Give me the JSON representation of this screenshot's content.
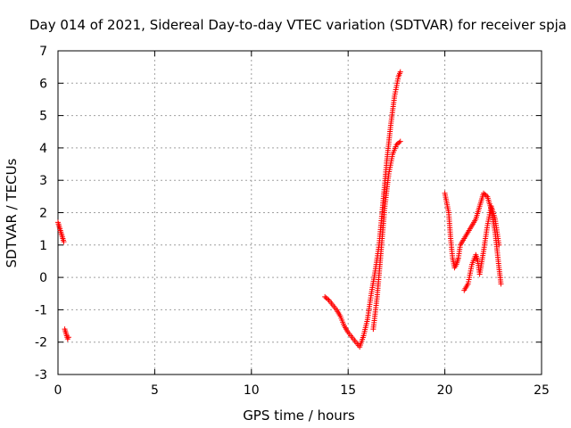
{
  "chart_data": {
    "type": "scatter",
    "title": "Day 014 of 2021, Sidereal Day-to-day VTEC variation (SDTVAR) for receiver spja",
    "xlabel": "GPS time / hours",
    "ylabel": "SDTVAR / TECUs",
    "xlim": [
      0,
      25
    ],
    "ylim": [
      -3,
      7
    ],
    "xticks": [
      "0",
      "5",
      "10",
      "15",
      "20",
      "25"
    ],
    "yticks": [
      "-3",
      "-2",
      "-1",
      "0",
      "1",
      "2",
      "3",
      "4",
      "5",
      "6",
      "7"
    ],
    "grid": true,
    "marker": "+",
    "color": "#ff0000",
    "series": [
      {
        "segments": [
          [
            [
              0.0,
              1.7
            ],
            [
              0.05,
              1.6
            ],
            [
              0.1,
              1.5
            ],
            [
              0.15,
              1.4
            ],
            [
              0.2,
              1.3
            ],
            [
              0.25,
              1.2
            ],
            [
              0.3,
              1.1
            ]
          ],
          [
            [
              0.35,
              -1.6
            ],
            [
              0.4,
              -1.7
            ],
            [
              0.45,
              -1.8
            ],
            [
              0.5,
              -1.9
            ],
            [
              0.55,
              -1.85
            ]
          ],
          [
            [
              13.8,
              -0.6
            ],
            [
              14.0,
              -0.7
            ],
            [
              14.2,
              -0.85
            ],
            [
              14.4,
              -1.0
            ],
            [
              14.6,
              -1.2
            ],
            [
              14.8,
              -1.5
            ],
            [
              15.0,
              -1.7
            ],
            [
              15.2,
              -1.85
            ],
            [
              15.4,
              -2.0
            ],
            [
              15.6,
              -2.15
            ],
            [
              15.8,
              -1.8
            ],
            [
              16.0,
              -1.3
            ],
            [
              16.2,
              -0.5
            ],
            [
              16.4,
              0.2
            ],
            [
              16.6,
              1.0
            ],
            [
              16.8,
              2.3
            ],
            [
              17.0,
              3.6
            ],
            [
              17.2,
              4.7
            ],
            [
              17.4,
              5.6
            ],
            [
              17.6,
              6.2
            ],
            [
              17.7,
              6.35
            ]
          ],
          [
            [
              16.3,
              -1.6
            ],
            [
              16.5,
              -0.6
            ],
            [
              16.7,
              0.8
            ],
            [
              16.9,
              2.2
            ],
            [
              17.1,
              3.2
            ],
            [
              17.3,
              3.8
            ],
            [
              17.5,
              4.1
            ],
            [
              17.7,
              4.2
            ]
          ],
          [
            [
              20.0,
              2.6
            ],
            [
              20.1,
              2.3
            ],
            [
              20.2,
              2.0
            ],
            [
              20.3,
              1.2
            ],
            [
              20.4,
              0.6
            ],
            [
              20.5,
              0.3
            ],
            [
              20.6,
              0.4
            ],
            [
              20.7,
              0.6
            ],
            [
              20.8,
              1.0
            ],
            [
              21.0,
              1.2
            ],
            [
              21.2,
              1.4
            ],
            [
              21.4,
              1.6
            ],
            [
              21.6,
              1.8
            ],
            [
              21.8,
              2.2
            ],
            [
              22.0,
              2.6
            ],
            [
              22.2,
              2.5
            ],
            [
              22.4,
              2.1
            ],
            [
              22.6,
              1.4
            ],
            [
              22.8,
              0.3
            ],
            [
              22.9,
              -0.2
            ]
          ],
          [
            [
              21.0,
              -0.4
            ],
            [
              21.2,
              -0.2
            ],
            [
              21.4,
              0.4
            ],
            [
              21.6,
              0.7
            ],
            [
              21.7,
              0.5
            ],
            [
              21.8,
              0.1
            ],
            [
              22.0,
              0.8
            ],
            [
              22.2,
              1.6
            ],
            [
              22.4,
              2.2
            ],
            [
              22.6,
              1.8
            ],
            [
              22.8,
              1.0
            ]
          ]
        ]
      }
    ]
  }
}
